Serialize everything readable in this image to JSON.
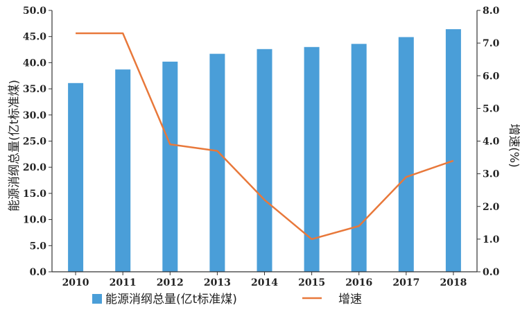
{
  "chart_data": {
    "type": "bar",
    "categories": [
      "2010",
      "2011",
      "2012",
      "2013",
      "2014",
      "2015",
      "2016",
      "2017",
      "2018"
    ],
    "series": [
      {
        "name": "能源消纲总量(亿t标准煤)",
        "type": "bar",
        "axis": "left",
        "color": "#4a9ed8",
        "values": [
          36.1,
          38.7,
          40.2,
          41.7,
          42.6,
          43.0,
          43.6,
          44.9,
          46.4
        ]
      },
      {
        "name": "增速",
        "type": "line",
        "axis": "right",
        "color": "#e8783a",
        "values": [
          7.3,
          7.3,
          3.9,
          3.7,
          2.2,
          1.0,
          1.4,
          2.9,
          3.4
        ]
      }
    ],
    "ylabel_left": "能源消纲总量(亿t标准煤)",
    "ylabel_right": "增速(%)",
    "ylim_left": [
      0,
      50
    ],
    "ylim_right": [
      0,
      8
    ],
    "yticks_left": [
      "0.0",
      "5.0",
      "10.0",
      "15.0",
      "20.0",
      "25.0",
      "30.0",
      "35.0",
      "40.0",
      "45.0",
      "50.0"
    ],
    "yticks_right": [
      "0.0",
      "1.0",
      "2.0",
      "3.0",
      "4.0",
      "5.0",
      "6.0",
      "7.0",
      "8.0"
    ],
    "grid": false,
    "legend_position": "bottom"
  }
}
